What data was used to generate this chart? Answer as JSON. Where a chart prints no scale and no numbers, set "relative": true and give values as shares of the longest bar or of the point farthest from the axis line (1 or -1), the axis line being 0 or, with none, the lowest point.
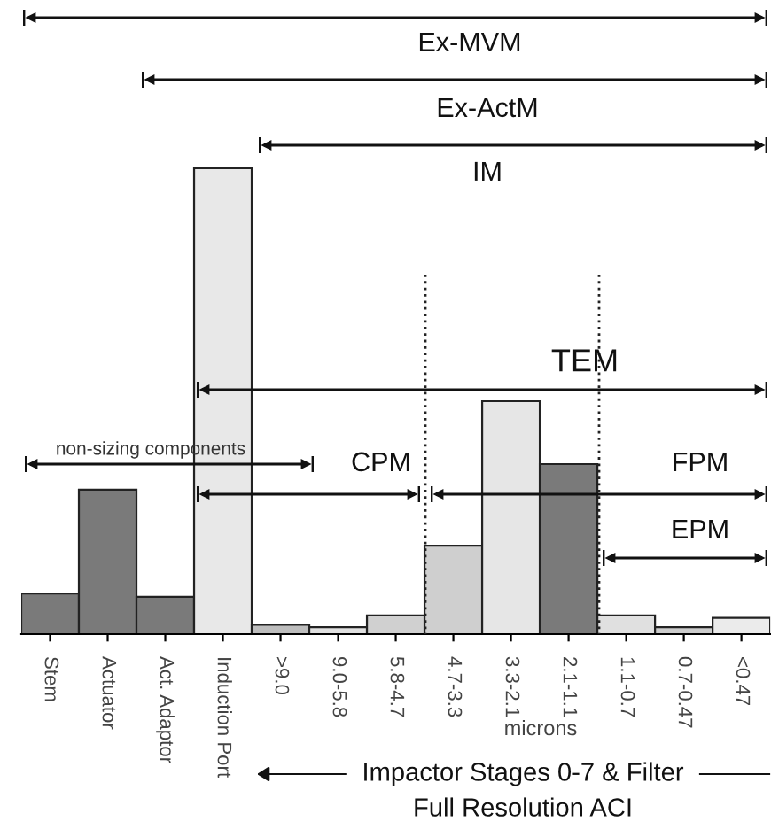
{
  "chart_data": {
    "type": "bar",
    "relative": true,
    "categories": [
      "Stem",
      "Actuator",
      "Act. Adaptor",
      "Induction Port",
      ">9.0",
      "9.0-5.8",
      "5.8-4.7",
      "4.7-3.3",
      "3.3-2.1",
      "2.1-1.1",
      "1.1-0.7",
      "0.7-0.47",
      "<0.47"
    ],
    "values": [
      0.087,
      0.31,
      0.08,
      1,
      0.02,
      0.015,
      0.04,
      0.19,
      0.5,
      0.365,
      0.04,
      0.015,
      0.035
    ],
    "colors": [
      "#7a7a7a",
      "#7a7a7a",
      "#7a7a7a",
      "#e8e8e8",
      "#bdbdbd",
      "#e0e0e0",
      "#d0d0d0",
      "#cfcfcf",
      "#e6e6e6",
      "#7a7a7a",
      "#e0e0e0",
      "#cccccc",
      "#ebebeb"
    ],
    "annotations": [
      "Ex-MVM",
      "Ex-ActM",
      "IM",
      "TEM",
      "non-sizing components",
      "CPM",
      "FPM",
      "EPM",
      "microns",
      "Impactor Stages 0-7 & Filter",
      "Full Resolution ACI"
    ]
  }
}
